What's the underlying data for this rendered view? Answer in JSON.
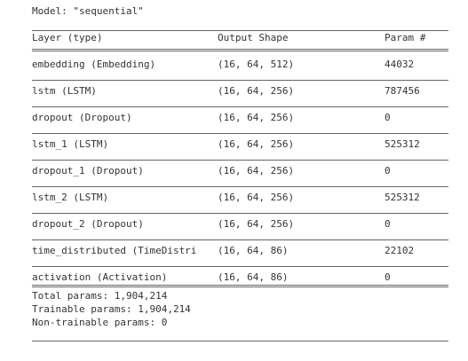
{
  "title": "Model: \"sequential\"",
  "table": {
    "header": [
      "Layer (type)",
      "Output Shape",
      "Param #"
    ],
    "rows": [
      [
        "embedding (Embedding)",
        "(16, 64, 512)",
        "44032"
      ],
      [
        "lstm (LSTM)",
        "(16, 64, 256)",
        "787456"
      ],
      [
        "dropout (Dropout)",
        "(16, 64, 256)",
        "0"
      ],
      [
        "lstm_1 (LSTM)",
        "(16, 64, 256)",
        "525312"
      ],
      [
        "dropout_1 (Dropout)",
        "(16, 64, 256)",
        "0"
      ],
      [
        "lstm_2 (LSTM)",
        "(16, 64, 256)",
        "525312"
      ],
      [
        "dropout_2 (Dropout)",
        "(16, 64, 256)",
        "0"
      ],
      [
        "time_distributed (TimeDistri",
        "(16, 64, 86)",
        "22102"
      ],
      [
        "activation (Activation)",
        "(16, 64, 86)",
        "0"
      ]
    ]
  },
  "footer": [
    "Total params: 1,904,214",
    "Trainable params: 1,904,214",
    "Non-trainable params: 0"
  ]
}
